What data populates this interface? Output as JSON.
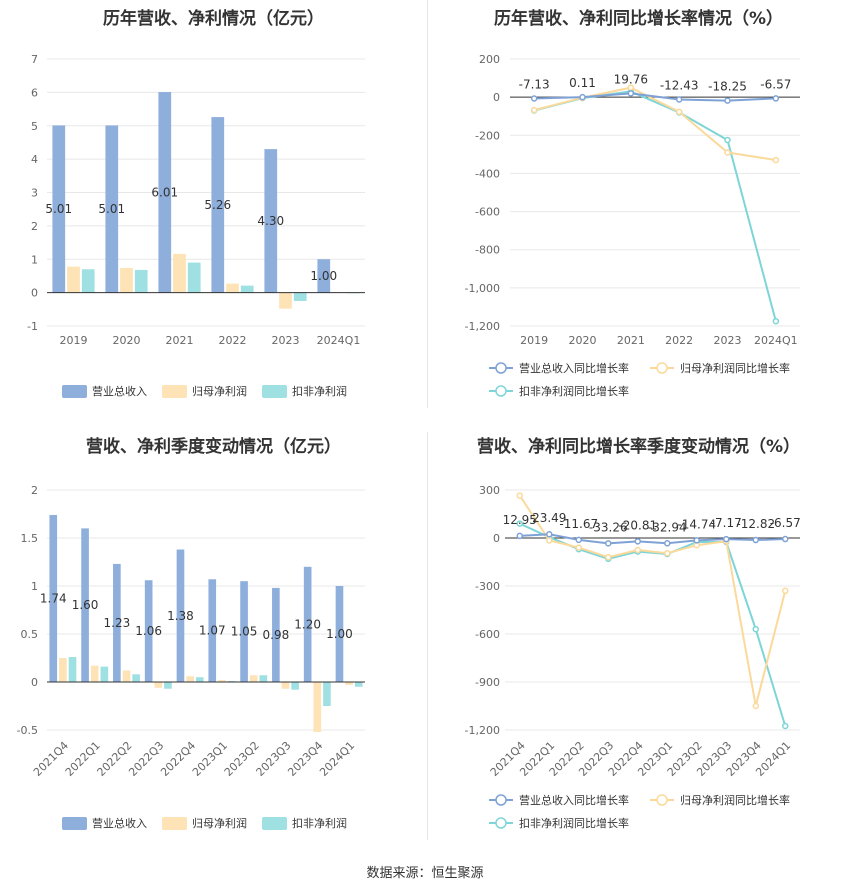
{
  "footer": {
    "source": "数据来源：恒生聚源"
  },
  "colors": {
    "revenue": "#8eaedc",
    "netProfit": "#fde3b5",
    "deducted": "#9fe0e2",
    "revLine": "#7ea2d6",
    "npLine": "#fbd99b",
    "dedLine": "#7dd5d8"
  },
  "chart_data": [
    {
      "id": "annual_amounts",
      "type": "bar",
      "title": "历年营收、净利情况（亿元）",
      "categories": [
        "2019",
        "2020",
        "2021",
        "2022",
        "2023",
        "2024Q1"
      ],
      "ylim": [
        -1,
        7
      ],
      "yticks": [
        -1,
        0,
        1,
        2,
        3,
        4,
        5,
        6,
        7
      ],
      "series": [
        {
          "name": "营业总收入",
          "values": [
            5.01,
            5.01,
            6.01,
            5.26,
            4.3,
            1.0
          ],
          "labels": [
            "5.01",
            "5.01",
            "6.01",
            "5.26",
            "4.30",
            "1.00"
          ]
        },
        {
          "name": "归母净利润",
          "values": [
            0.78,
            0.74,
            1.16,
            0.27,
            -0.48,
            0.01
          ]
        },
        {
          "name": "扣非净利润",
          "values": [
            0.7,
            0.68,
            0.9,
            0.21,
            -0.25,
            -0.02
          ]
        }
      ],
      "legend": "bottom"
    },
    {
      "id": "annual_growth",
      "type": "line",
      "title": "历年营收、净利同比增长率情况（%）",
      "categories": [
        "2019",
        "2020",
        "2021",
        "2022",
        "2023",
        "2024Q1"
      ],
      "ylim": [
        -1200,
        200
      ],
      "yticks": [
        200,
        0,
        -200,
        -400,
        -600,
        -800,
        -1000,
        -1200
      ],
      "ytick_labels": [
        "200",
        "0",
        "-200",
        "-400",
        "-600",
        "-800",
        "-1,000",
        "-1,200"
      ],
      "series": [
        {
          "name": "营业总收入同比增长率",
          "values": [
            -7.13,
            0.11,
            19.76,
            -12.43,
            -18.25,
            -6.57
          ],
          "labels": [
            "-7.13",
            "0.11",
            "19.76",
            "-12.43",
            "-18.25",
            "-6.57"
          ]
        },
        {
          "name": "归母净利润同比增长率",
          "values": [
            -68,
            -3,
            50,
            -77,
            -290,
            -330
          ]
        },
        {
          "name": "扣非净利润同比增长率",
          "values": [
            -70,
            -5,
            30,
            -80,
            -225,
            -1175
          ]
        }
      ],
      "legend": "bottom"
    },
    {
      "id": "quarterly_amounts",
      "type": "bar",
      "title": "营收、净利季度变动情况（亿元）",
      "categories": [
        "2021Q4",
        "2022Q1",
        "2022Q2",
        "2022Q3",
        "2022Q4",
        "2023Q1",
        "2023Q2",
        "2023Q3",
        "2023Q4",
        "2024Q1"
      ],
      "ylim": [
        -0.5,
        2
      ],
      "yticks": [
        -0.5,
        0,
        0.5,
        1,
        1.5,
        2
      ],
      "ytick_labels": [
        "-0.5",
        "0",
        "0.5",
        "1",
        "1.5",
        "2"
      ],
      "series": [
        {
          "name": "营业总收入",
          "values": [
            1.74,
            1.6,
            1.23,
            1.06,
            1.38,
            1.07,
            1.05,
            0.98,
            1.2,
            1.0
          ],
          "labels": [
            "1.74",
            "1.60",
            "1.23",
            "1.06",
            "1.38",
            "1.07",
            "1.05",
            "0.98",
            "1.20",
            "1.00"
          ]
        },
        {
          "name": "归母净利润",
          "values": [
            0.25,
            0.17,
            0.12,
            -0.06,
            0.06,
            0.02,
            0.07,
            -0.07,
            -0.52,
            -0.03
          ]
        },
        {
          "name": "扣非净利润",
          "values": [
            0.26,
            0.16,
            0.08,
            -0.07,
            0.05,
            0.01,
            0.07,
            -0.08,
            -0.25,
            -0.05
          ]
        }
      ],
      "legend": "bottom"
    },
    {
      "id": "quarterly_growth",
      "type": "line",
      "title": "营收、净利同比增长率季度变动情况（%）",
      "categories": [
        "2021Q4",
        "2022Q1",
        "2022Q2",
        "2022Q3",
        "2022Q4",
        "2023Q1",
        "2023Q2",
        "2023Q3",
        "2023Q4",
        "2024Q1"
      ],
      "ylim": [
        -1200,
        300
      ],
      "yticks": [
        300,
        0,
        -300,
        -600,
        -900,
        -1200
      ],
      "ytick_labels": [
        "300",
        "0",
        "-300",
        "-600",
        "-900",
        "-1,200"
      ],
      "series": [
        {
          "name": "营业总收入同比增长率",
          "values": [
            12.95,
            23.49,
            -11.67,
            -33.26,
            -20.81,
            -32.94,
            -14.74,
            -7.17,
            -12.82,
            -6.57
          ],
          "labels": [
            "12.95",
            "23.49",
            "-11.67",
            "-33.26",
            "-20.81",
            "-32.94",
            "-14.74",
            "-7.17",
            "-12.82",
            "-6.57"
          ]
        },
        {
          "name": "归母净利润同比增长率",
          "values": [
            265,
            -15,
            -60,
            -120,
            -75,
            -95,
            -45,
            -20,
            -1050,
            -330
          ]
        },
        {
          "name": "扣非净利润同比增长率",
          "values": [
            90,
            5,
            -70,
            -130,
            -85,
            -100,
            -25,
            -25,
            -570,
            -1175
          ]
        }
      ],
      "legend": "bottom"
    }
  ]
}
